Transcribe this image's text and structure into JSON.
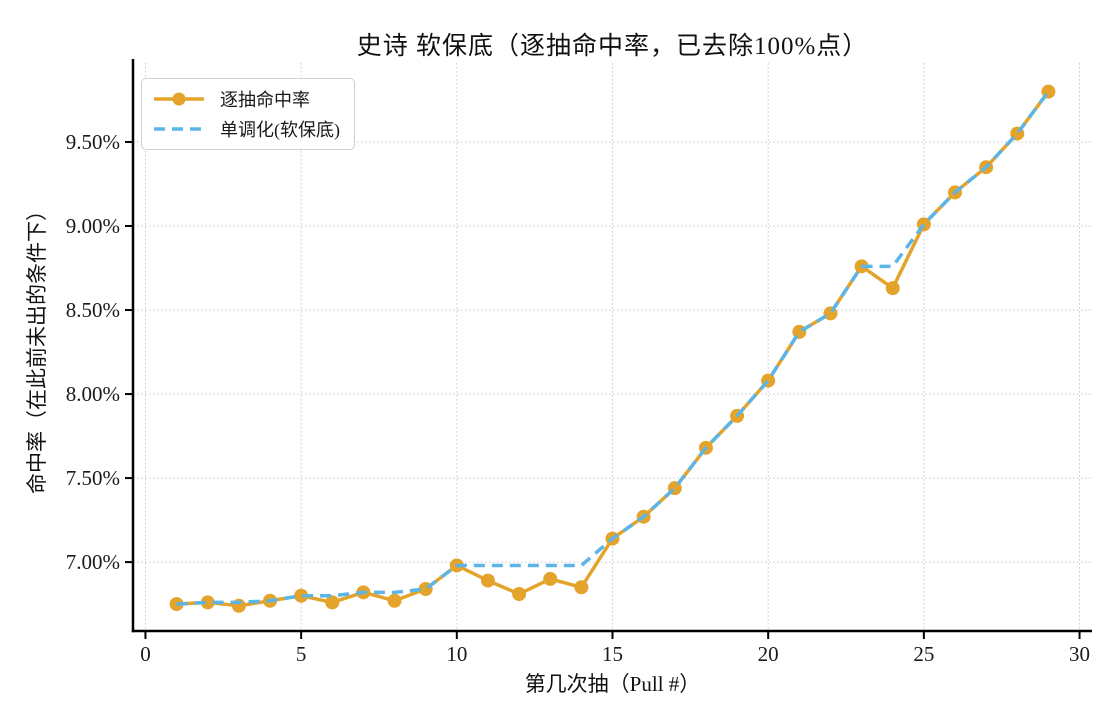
{
  "chart_data": {
    "type": "line",
    "title": "史诗 软保底（逐抽命中率，已去除100%点）",
    "xlabel": "第几次抽（Pull #）",
    "ylabel": "命中率（在此前未出的条件下）",
    "x": [
      1,
      2,
      3,
      4,
      5,
      6,
      7,
      8,
      9,
      10,
      11,
      12,
      13,
      14,
      15,
      16,
      17,
      18,
      19,
      20,
      21,
      22,
      23,
      24,
      25,
      26,
      27,
      28,
      29
    ],
    "series": [
      {
        "name": "逐抽命中率",
        "style": "solid",
        "marker": "circle",
        "color": "#E4A32B",
        "values": [
          6.75,
          6.76,
          6.74,
          6.77,
          6.8,
          6.76,
          6.82,
          6.77,
          6.84,
          6.98,
          6.89,
          6.81,
          6.9,
          6.85,
          7.14,
          7.27,
          7.44,
          7.68,
          7.87,
          8.08,
          8.37,
          8.48,
          8.76,
          8.63,
          9.01,
          9.2,
          9.35,
          9.55,
          9.8
        ]
      },
      {
        "name": "单调化(软保底)",
        "style": "dashed",
        "marker": "none",
        "color": "#5CB5E7",
        "values": [
          6.75,
          6.76,
          6.76,
          6.77,
          6.8,
          6.8,
          6.82,
          6.82,
          6.84,
          6.98,
          6.98,
          6.98,
          6.98,
          6.98,
          7.14,
          7.27,
          7.44,
          7.68,
          7.87,
          8.08,
          8.37,
          8.48,
          8.76,
          8.76,
          9.01,
          9.2,
          9.35,
          9.55,
          9.8
        ]
      }
    ],
    "unit": "%",
    "xlim": [
      -0.4,
      30.4
    ],
    "ylim": [
      6.59,
      9.97
    ],
    "xticks": [
      0,
      5,
      10,
      15,
      20,
      25,
      30
    ],
    "xtick_labels": [
      "0",
      "5",
      "10",
      "15",
      "20",
      "25",
      "30"
    ],
    "yticks": [
      7.0,
      7.5,
      8.0,
      8.5,
      9.0,
      9.5
    ],
    "ytick_labels": [
      "7.00%",
      "7.50%",
      "8.00%",
      "8.50%",
      "9.00%",
      "9.50%"
    ],
    "grid": true,
    "legend_position": "upper-left"
  },
  "colors": {
    "grid": "#c8c8c8",
    "spine": "#000000",
    "text": "#1a1a1a",
    "background": "#ffffff"
  }
}
